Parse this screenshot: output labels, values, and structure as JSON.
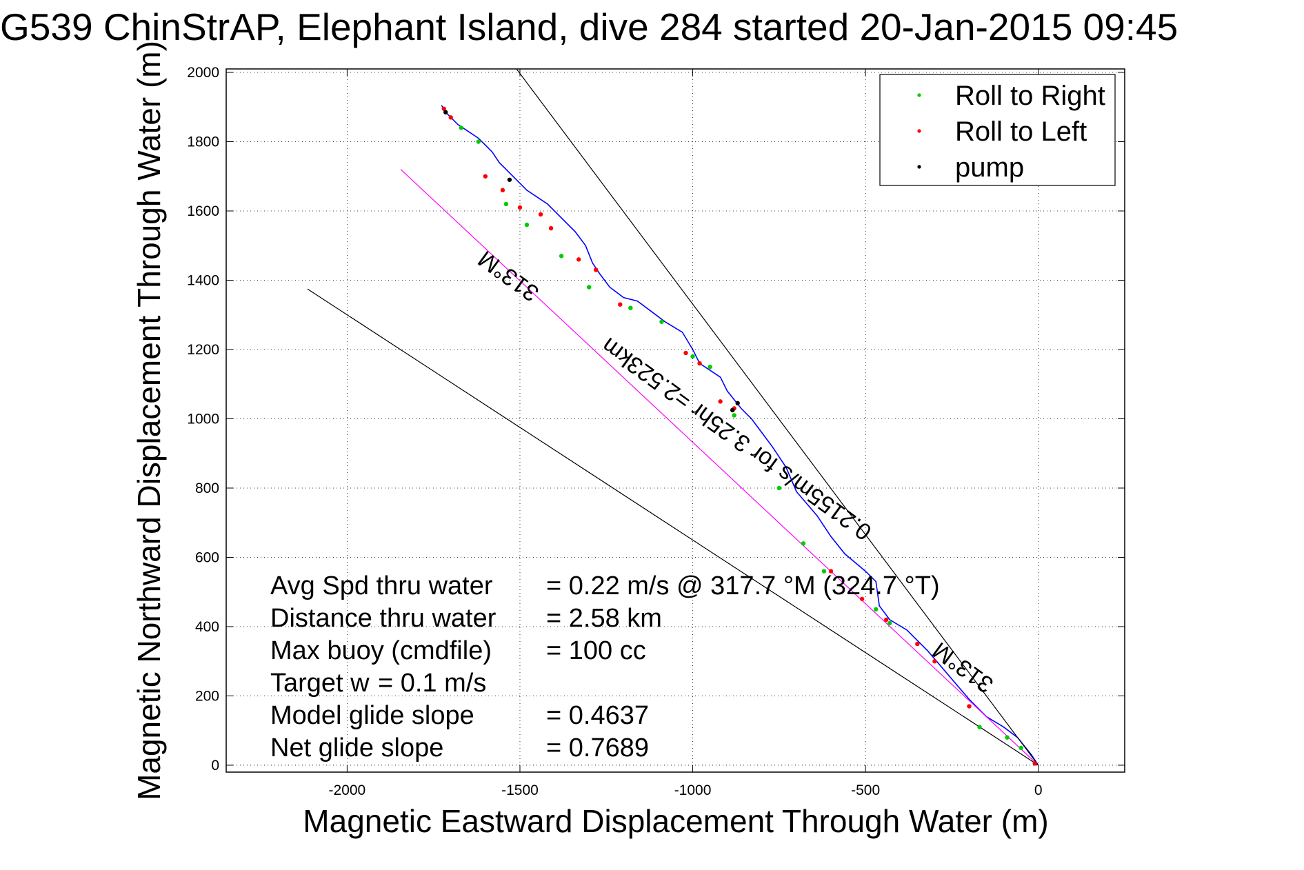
{
  "title": "G539 ChinStrAP, Elephant Island, dive 284 started 20-Jan-2015 09:45",
  "chart_data": {
    "type": "line",
    "title": "G539 ChinStrAP, Elephant Island, dive 284 started 20-Jan-2015 09:45",
    "xlabel": "Magnetic Eastward Displacement Through Water (m)",
    "ylabel": "Magnetic Northward Displacement Through Water (m)",
    "xlim": [
      -2350,
      250
    ],
    "ylim": [
      -20,
      2010
    ],
    "xticks": [
      -2000,
      -1500,
      -1000,
      -500,
      0
    ],
    "xtick_labels": [
      "-2000",
      "-1500",
      "-1000",
      "-500",
      "0"
    ],
    "yticks": [
      0,
      200,
      400,
      600,
      800,
      1000,
      1200,
      1400,
      1600,
      1800,
      2000
    ],
    "ytick_labels": [
      "0",
      "200",
      "400",
      "600",
      "800",
      "1000",
      "1200",
      "1400",
      "1600",
      "1800",
      "2000"
    ],
    "grid": "dotted",
    "legend_position": "top-right",
    "legend": [
      {
        "label": "Roll to Right",
        "color": "#00cc00"
      },
      {
        "label": "Roll to Left",
        "color": "#ff0000"
      },
      {
        "label": "pump",
        "color": "#000000"
      }
    ],
    "series": [
      {
        "name": "track",
        "color": "#0000ff",
        "x": [
          0,
          -20,
          -60,
          -100,
          -150,
          -200,
          -260,
          -320,
          -380,
          -430,
          -460,
          -470,
          -500,
          -560,
          -600,
          -640,
          -700,
          -730,
          -770,
          -800,
          -830,
          -860,
          -900,
          -920,
          -950,
          -980,
          -1000,
          -1030,
          -1080,
          -1120,
          -1160,
          -1200,
          -1240,
          -1270,
          -1290,
          -1310,
          -1340,
          -1380,
          -1420,
          -1450,
          -1480,
          -1520,
          -1560,
          -1580,
          -1600,
          -1620,
          -1650,
          -1680,
          -1710,
          -1727
        ],
        "y": [
          0,
          30,
          80,
          110,
          140,
          190,
          260,
          330,
          390,
          420,
          460,
          530,
          560,
          610,
          660,
          720,
          790,
          860,
          920,
          960,
          1000,
          1030,
          1080,
          1120,
          1140,
          1160,
          1200,
          1250,
          1280,
          1310,
          1340,
          1350,
          1380,
          1420,
          1450,
          1500,
          1540,
          1580,
          1620,
          1640,
          1660,
          1700,
          1740,
          1770,
          1790,
          1810,
          1830,
          1850,
          1880,
          1905
        ]
      },
      {
        "name": "heading 313°M",
        "color": "#ff00ff",
        "x": [
          0,
          -1845
        ],
        "y": [
          0,
          1720
        ]
      },
      {
        "name": "cone 1",
        "color": "#000000",
        "x": [
          0,
          -1510
        ],
        "y": [
          0,
          2010
        ]
      },
      {
        "name": "cone 2",
        "color": "#000000",
        "x": [
          0,
          -2115
        ],
        "y": [
          0,
          1375
        ]
      }
    ],
    "roll_right_points": {
      "x": [
        -50,
        -90,
        -170,
        -430,
        -470,
        -620,
        -680,
        -750,
        -880,
        -950,
        -1000,
        -1090,
        -1180,
        -1300,
        -1380,
        -1480,
        -1540,
        -1620,
        -1670
      ],
      "y": [
        50,
        80,
        110,
        410,
        450,
        560,
        640,
        800,
        1010,
        1150,
        1180,
        1280,
        1320,
        1380,
        1470,
        1560,
        1620,
        1800,
        1840
      ]
    },
    "roll_left_points": {
      "x": [
        -10,
        -200,
        -300,
        -350,
        -440,
        -510,
        -600,
        -880,
        -920,
        -980,
        -1020,
        -1210,
        -1280,
        -1330,
        -1410,
        -1440,
        -1500,
        -1550,
        -1600,
        -1700,
        -1720
      ],
      "y": [
        5,
        170,
        300,
        350,
        420,
        480,
        560,
        1030,
        1050,
        1160,
        1190,
        1330,
        1430,
        1460,
        1550,
        1590,
        1610,
        1660,
        1700,
        1870,
        1895
      ]
    },
    "pump_points": {
      "x": [
        -870,
        -885,
        -1530,
        -1715
      ],
      "y": [
        1045,
        1025,
        1690,
        1885
      ]
    },
    "annotations": [
      {
        "text": "313°M",
        "x": -1520,
        "y": 1430,
        "rotation": 36
      },
      {
        "text": "313°M",
        "x": -205,
        "y": 300,
        "rotation": 36
      },
      {
        "text": "0.2155m/s for 3.25hr =2.523km",
        "x": -860,
        "y": 960,
        "rotation": 36
      }
    ]
  },
  "stats": [
    {
      "label": "Avg Spd thru water",
      "value": "=  0.22 m/s @ 317.7 °M (324.7 °T)"
    },
    {
      "label": "Distance thru water",
      "value": "=  2.58 km"
    },
    {
      "label": "Max buoy (cmdfile)",
      "value": "= 100 cc"
    },
    {
      "label": "Target w",
      "value": "= 0.1 m/s"
    },
    {
      "label": "Model glide slope",
      "value": "= 0.4637"
    },
    {
      "label": "Net glide slope",
      "value": "= 0.7689"
    }
  ]
}
